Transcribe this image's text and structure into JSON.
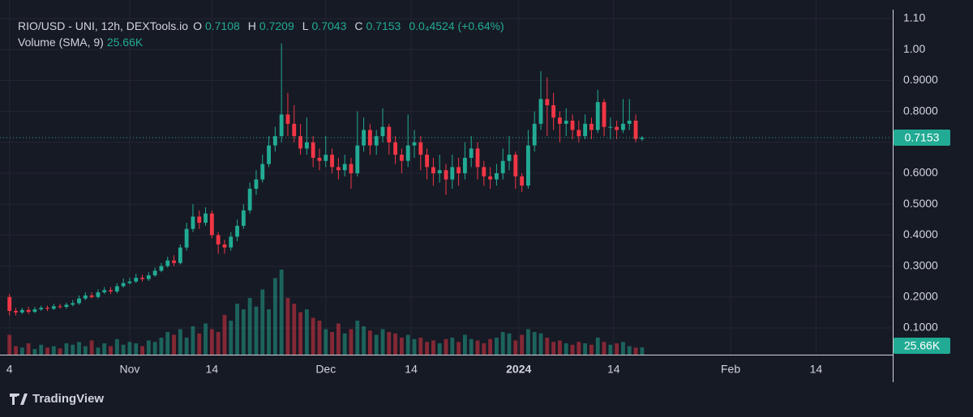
{
  "chart_data": {
    "type": "candlestick",
    "title": "RIO/USD - UNI, 12h, DEXTools.io",
    "ohlc_labels": [
      "O",
      "H",
      "L",
      "C"
    ],
    "change": "0.0₄4524 (+0.64%)",
    "volume_title": "Volume (SMA, 9)",
    "volume_value_label": "25.66K",
    "brand": "TradingView",
    "up_color": "#22ab94",
    "down_color": "#f23645",
    "grid": true,
    "xlim": [
      -1.5,
      139.5
    ],
    "xticks": [
      {
        "value": 0,
        "label": "4"
      },
      {
        "value": 19,
        "label": "Nov"
      },
      {
        "value": 32,
        "label": "14"
      },
      {
        "value": 50,
        "label": "Dec"
      },
      {
        "value": 63.5,
        "label": "14"
      },
      {
        "value": 80.5,
        "label": "2024"
      },
      {
        "value": 95.5,
        "label": "14"
      },
      {
        "value": 114,
        "label": "Feb"
      },
      {
        "value": 127.5,
        "label": "14"
      }
    ],
    "ylim": [
      0.0136,
      1.1602
    ],
    "yticks": [
      {
        "value": 1.1,
        "label": "1.10"
      },
      {
        "value": 1.0,
        "label": "1.00"
      },
      {
        "value": 0.9,
        "label": "0.9000"
      },
      {
        "value": 0.8,
        "label": "0.8000"
      },
      {
        "value": 0.7,
        "label": "0.7000"
      },
      {
        "value": 0.6,
        "label": "0.6000"
      },
      {
        "value": 0.5,
        "label": "0.5000"
      },
      {
        "value": 0.4,
        "label": "0.4000"
      },
      {
        "value": 0.3,
        "label": "0.3000"
      },
      {
        "value": 0.2,
        "label": "0.2000"
      },
      {
        "value": 0.1,
        "label": "0.1000"
      }
    ],
    "open": [
      0.2,
      0.155,
      0.15,
      0.158,
      0.152,
      0.16,
      0.165,
      0.162,
      0.17,
      0.168,
      0.175,
      0.18,
      0.195,
      0.205,
      0.2,
      0.215,
      0.222,
      0.218,
      0.235,
      0.245,
      0.25,
      0.262,
      0.258,
      0.27,
      0.285,
      0.3,
      0.318,
      0.31,
      0.36,
      0.42,
      0.46,
      0.44,
      0.47,
      0.4,
      0.37,
      0.36,
      0.395,
      0.43,
      0.48,
      0.55,
      0.58,
      0.63,
      0.69,
      0.72,
      0.79,
      0.76,
      0.72,
      0.68,
      0.7,
      0.65,
      0.64,
      0.66,
      0.62,
      0.61,
      0.63,
      0.6,
      0.69,
      0.74,
      0.69,
      0.72,
      0.75,
      0.7,
      0.66,
      0.64,
      0.69,
      0.7,
      0.66,
      0.62,
      0.6,
      0.61,
      0.58,
      0.62,
      0.6,
      0.65,
      0.68,
      0.62,
      0.59,
      0.58,
      0.6,
      0.64,
      0.66,
      0.59,
      0.56,
      0.69,
      0.76,
      0.84,
      0.82,
      0.78,
      0.76,
      0.77,
      0.74,
      0.72,
      0.76,
      0.74,
      0.83,
      0.75,
      0.75,
      0.74,
      0.76,
      0.77,
      0.7108
    ],
    "high": [
      0.21,
      0.165,
      0.165,
      0.168,
      0.168,
      0.172,
      0.172,
      0.178,
      0.178,
      0.182,
      0.19,
      0.205,
      0.215,
      0.215,
      0.225,
      0.232,
      0.232,
      0.245,
      0.26,
      0.262,
      0.275,
      0.272,
      0.28,
      0.295,
      0.31,
      0.33,
      0.335,
      0.37,
      0.44,
      0.5,
      0.48,
      0.49,
      0.48,
      0.41,
      0.385,
      0.41,
      0.45,
      0.5,
      0.57,
      0.61,
      0.66,
      0.72,
      0.75,
      1.02,
      0.86,
      0.82,
      0.76,
      0.78,
      0.72,
      0.68,
      0.72,
      0.68,
      0.65,
      0.66,
      0.65,
      0.8,
      0.78,
      0.76,
      0.74,
      0.81,
      0.76,
      0.72,
      0.68,
      0.79,
      0.74,
      0.72,
      0.68,
      0.65,
      0.66,
      0.63,
      0.66,
      0.65,
      0.7,
      0.72,
      0.7,
      0.64,
      0.62,
      0.63,
      0.68,
      0.72,
      0.67,
      0.6,
      0.74,
      0.8,
      0.93,
      0.91,
      0.86,
      0.8,
      0.81,
      0.79,
      0.77,
      0.79,
      0.78,
      0.87,
      0.84,
      0.78,
      0.77,
      0.84,
      0.84,
      0.79,
      0.7209
    ],
    "low": [
      0.14,
      0.14,
      0.145,
      0.145,
      0.148,
      0.155,
      0.155,
      0.158,
      0.162,
      0.162,
      0.17,
      0.175,
      0.19,
      0.195,
      0.195,
      0.21,
      0.21,
      0.212,
      0.23,
      0.24,
      0.245,
      0.25,
      0.252,
      0.265,
      0.28,
      0.295,
      0.3,
      0.305,
      0.35,
      0.41,
      0.42,
      0.43,
      0.39,
      0.34,
      0.34,
      0.35,
      0.38,
      0.42,
      0.47,
      0.53,
      0.57,
      0.62,
      0.67,
      0.7,
      0.72,
      0.7,
      0.66,
      0.66,
      0.62,
      0.61,
      0.62,
      0.6,
      0.58,
      0.59,
      0.55,
      0.59,
      0.67,
      0.66,
      0.66,
      0.7,
      0.66,
      0.63,
      0.6,
      0.62,
      0.65,
      0.61,
      0.58,
      0.56,
      0.57,
      0.53,
      0.55,
      0.56,
      0.58,
      0.62,
      0.58,
      0.56,
      0.55,
      0.56,
      0.58,
      0.61,
      0.55,
      0.54,
      0.55,
      0.67,
      0.74,
      0.72,
      0.74,
      0.7,
      0.72,
      0.71,
      0.7,
      0.71,
      0.71,
      0.73,
      0.72,
      0.71,
      0.71,
      0.73,
      0.74,
      0.7,
      0.7043
    ],
    "close": [
      0.155,
      0.15,
      0.158,
      0.152,
      0.16,
      0.165,
      0.162,
      0.17,
      0.168,
      0.175,
      0.18,
      0.195,
      0.205,
      0.2,
      0.215,
      0.222,
      0.218,
      0.235,
      0.245,
      0.25,
      0.262,
      0.258,
      0.27,
      0.285,
      0.3,
      0.318,
      0.31,
      0.36,
      0.42,
      0.46,
      0.44,
      0.47,
      0.4,
      0.37,
      0.36,
      0.395,
      0.43,
      0.48,
      0.55,
      0.58,
      0.63,
      0.69,
      0.72,
      0.79,
      0.76,
      0.72,
      0.68,
      0.7,
      0.65,
      0.64,
      0.66,
      0.62,
      0.61,
      0.63,
      0.6,
      0.69,
      0.74,
      0.69,
      0.72,
      0.75,
      0.7,
      0.66,
      0.64,
      0.69,
      0.7,
      0.66,
      0.62,
      0.6,
      0.61,
      0.58,
      0.62,
      0.6,
      0.65,
      0.68,
      0.62,
      0.59,
      0.58,
      0.6,
      0.64,
      0.66,
      0.59,
      0.56,
      0.69,
      0.76,
      0.84,
      0.82,
      0.78,
      0.76,
      0.77,
      0.74,
      0.72,
      0.76,
      0.74,
      0.83,
      0.75,
      0.75,
      0.74,
      0.76,
      0.77,
      0.7108,
      0.7153
    ],
    "volume": [
      70,
      30,
      25,
      40,
      20,
      35,
      25,
      30,
      22,
      40,
      35,
      45,
      30,
      50,
      25,
      40,
      30,
      55,
      35,
      45,
      40,
      30,
      50,
      45,
      60,
      80,
      70,
      90,
      60,
      100,
      75,
      110,
      90,
      80,
      140,
      120,
      180,
      160,
      200,
      170,
      230,
      160,
      270,
      300,
      200,
      180,
      150,
      160,
      130,
      120,
      90,
      80,
      110,
      75,
      90,
      120,
      100,
      85,
      70,
      90,
      80,
      75,
      60,
      70,
      55,
      60,
      45,
      50,
      40,
      55,
      60,
      45,
      70,
      55,
      50,
      40,
      55,
      60,
      80,
      75,
      50,
      70,
      90,
      80,
      75,
      60,
      45,
      50,
      40,
      35,
      45,
      40,
      35,
      60,
      45,
      35,
      40,
      45,
      30,
      25,
      25.66
    ]
  }
}
